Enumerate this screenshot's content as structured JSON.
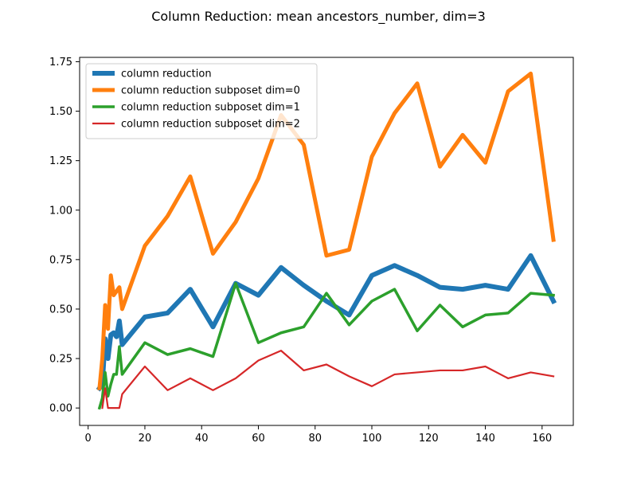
{
  "chart_data": {
    "type": "line",
    "title": "Column Reduction: mean ancestors_number, dim=3",
    "xlabel": "",
    "ylabel": "",
    "xlim": [
      -3,
      171
    ],
    "ylim": [
      -0.088,
      1.772
    ],
    "x_ticks": [
      0,
      20,
      40,
      60,
      80,
      100,
      120,
      140,
      160
    ],
    "y_ticks": [
      0.0,
      0.25,
      0.5,
      0.75,
      1.0,
      1.25,
      1.5,
      1.75
    ],
    "x_tick_labels": [
      "0",
      "20",
      "40",
      "60",
      "80",
      "100",
      "120",
      "140",
      "160"
    ],
    "y_tick_labels": [
      "0.00",
      "0.25",
      "0.50",
      "0.75",
      "1.00",
      "1.25",
      "1.50",
      "1.75"
    ],
    "grid": false,
    "legend_position": "top-left",
    "series": [
      {
        "name": "column reduction",
        "color": "#1f77b4",
        "x": [
          4,
          5,
          6,
          7,
          8,
          9,
          10,
          11,
          12,
          20,
          28,
          36,
          44,
          52,
          60,
          68,
          76,
          84,
          92,
          100,
          108,
          116,
          124,
          132,
          140,
          148,
          156,
          164
        ],
        "y": [
          0.1,
          0.12,
          0.35,
          0.25,
          0.37,
          0.38,
          0.36,
          0.44,
          0.32,
          0.46,
          0.48,
          0.6,
          0.41,
          0.63,
          0.57,
          0.71,
          0.62,
          0.54,
          0.47,
          0.67,
          0.72,
          0.67,
          0.61,
          0.6,
          0.62,
          0.6,
          0.77,
          0.54
        ]
      },
      {
        "name": "column reduction subposet dim=0",
        "color": "#ff7f0e",
        "x": [
          4,
          5,
          6,
          7,
          8,
          9,
          10,
          11,
          12,
          20,
          28,
          36,
          44,
          52,
          60,
          68,
          76,
          84,
          92,
          100,
          108,
          116,
          124,
          132,
          140,
          148,
          156,
          164
        ],
        "y": [
          0.1,
          0.25,
          0.52,
          0.4,
          0.67,
          0.57,
          0.59,
          0.61,
          0.5,
          0.82,
          0.97,
          1.17,
          0.78,
          0.94,
          1.16,
          1.48,
          1.33,
          0.77,
          0.8,
          1.27,
          1.49,
          1.64,
          1.22,
          1.38,
          1.24,
          1.6,
          1.69,
          0.85
        ]
      },
      {
        "name": "column reduction subposet dim=1",
        "color": "#2ca02c",
        "x": [
          4,
          5,
          6,
          7,
          8,
          9,
          10,
          11,
          12,
          20,
          28,
          36,
          44,
          52,
          60,
          68,
          76,
          84,
          92,
          100,
          108,
          116,
          124,
          132,
          140,
          148,
          156,
          164
        ],
        "y": [
          0.0,
          0.05,
          0.18,
          0.06,
          0.12,
          0.17,
          0.17,
          0.31,
          0.17,
          0.33,
          0.27,
          0.3,
          0.26,
          0.63,
          0.33,
          0.38,
          0.41,
          0.58,
          0.42,
          0.54,
          0.6,
          0.39,
          0.52,
          0.41,
          0.47,
          0.48,
          0.58,
          0.57
        ]
      },
      {
        "name": "column reduction subposet dim=2",
        "color": "#d62728",
        "x": [
          5,
          6,
          7,
          8,
          9,
          10,
          11,
          12,
          20,
          28,
          36,
          44,
          52,
          60,
          68,
          76,
          84,
          92,
          100,
          108,
          116,
          124,
          132,
          140,
          148,
          156,
          164
        ],
        "y": [
          0.0,
          0.1,
          0.0,
          0.0,
          0.0,
          0.0,
          0.0,
          0.07,
          0.21,
          0.09,
          0.15,
          0.09,
          0.15,
          0.24,
          0.29,
          0.19,
          0.22,
          0.16,
          0.11,
          0.17,
          0.18,
          0.19,
          0.19,
          0.21,
          0.15,
          0.18,
          0.16
        ]
      }
    ]
  }
}
